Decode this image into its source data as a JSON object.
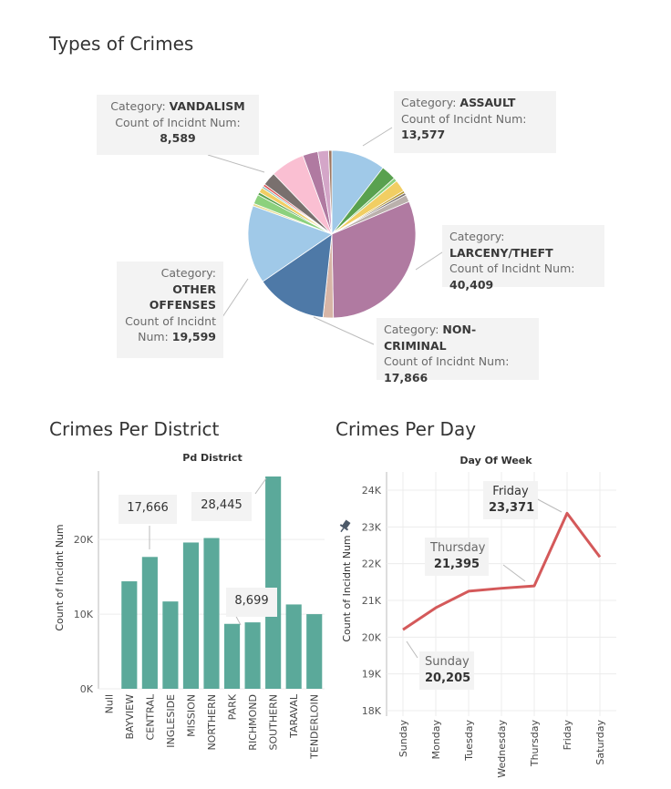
{
  "colors": {
    "bar": "#5ba99a",
    "line": "#d4595a",
    "grid": "#ececec",
    "axis": "#bbbbbb"
  },
  "icons": {
    "pin": "pin-icon"
  },
  "chart_data": [
    {
      "type": "pie",
      "title": "Types of Crimes",
      "slices": [
        {
          "label": "ASSAULT",
          "value": 13577,
          "color": "#a0c9e8"
        },
        {
          "label": "",
          "value": 3800,
          "color": "#59a14f"
        },
        {
          "label": "",
          "value": 900,
          "color": "#8cd17d"
        },
        {
          "label": "",
          "value": 3000,
          "color": "#f1ce63"
        },
        {
          "label": "",
          "value": 600,
          "color": "#b6992d"
        },
        {
          "label": "",
          "value": 600,
          "color": "#79706e"
        },
        {
          "label": "",
          "value": 1800,
          "color": "#bab0ac"
        },
        {
          "label": "LARCENY/THEFT",
          "value": 40409,
          "color": "#b07aa1"
        },
        {
          "label": "",
          "value": 2600,
          "color": "#d7b5a6"
        },
        {
          "label": "NON-CRIMINAL",
          "value": 17866,
          "color": "#4e79a7"
        },
        {
          "label": "OTHER OFFENSES",
          "value": 19599,
          "color": "#a0c9e8"
        },
        {
          "label": "",
          "value": 600,
          "color": "#e5d98b"
        },
        {
          "label": "",
          "value": 2400,
          "color": "#8cd17d"
        },
        {
          "label": "",
          "value": 700,
          "color": "#59a14f"
        },
        {
          "label": "",
          "value": 1300,
          "color": "#f1ce63"
        },
        {
          "label": "",
          "value": 500,
          "color": "#86bcb6"
        },
        {
          "label": "",
          "value": 600,
          "color": "#e15759"
        },
        {
          "label": "",
          "value": 3400,
          "color": "#79706e"
        },
        {
          "label": "VANDALISM",
          "value": 8589,
          "color": "#fabfd2"
        },
        {
          "label": "",
          "value": 3800,
          "color": "#b07aa1"
        },
        {
          "label": "",
          "value": 2700,
          "color": "#d4a6c8"
        },
        {
          "label": "",
          "value": 800,
          "color": "#9d7660"
        }
      ],
      "callouts": {
        "category_label": "Category:",
        "count_label": "Count of Incidnt Num:",
        "count_label_line1": "Count of Incidnt",
        "count_label_line2": "Num:",
        "other_line1": "OTHER",
        "other_line2": "OFFENSES",
        "vandalism": {
          "category": "VANDALISM",
          "value": "8,589"
        },
        "assault": {
          "category": "ASSAULT",
          "value": "13,577"
        },
        "larceny": {
          "category": "LARCENY/THEFT",
          "value": "40,409"
        },
        "other": {
          "value": "19,599"
        },
        "noncriminal": {
          "category": "NON-CRIMINAL",
          "value": "17,866"
        }
      }
    },
    {
      "type": "bar",
      "title": "Crimes Per District",
      "header": "Pd District",
      "ylabel": "Count of Incidnt Num",
      "ylim": [
        0,
        28445
      ],
      "yticks": [
        {
          "v": 0,
          "label": "0K"
        },
        {
          "v": 10000,
          "label": "10K"
        },
        {
          "v": 20000,
          "label": "20K"
        }
      ],
      "categories": [
        "Null",
        "BAYVIEW",
        "CENTRAL",
        "INGLESIDE",
        "MISSION",
        "NORTHERN",
        "PARK",
        "RICHMOND",
        "SOUTHERN",
        "TARAVAL",
        "TENDERLOIN"
      ],
      "values": [
        0,
        14400,
        17666,
        11700,
        19600,
        20200,
        8699,
        8900,
        28445,
        11300,
        10000
      ],
      "labels": {
        "central": "17,666",
        "southern": "28,445",
        "park": "8,699"
      }
    },
    {
      "type": "line",
      "title": "Crimes Per Day",
      "header": "Day Of Week",
      "ylabel": "Count of Incidnt Num",
      "ylim": [
        18000,
        24000
      ],
      "yticks": [
        {
          "v": 18000,
          "label": "18K"
        },
        {
          "v": 19000,
          "label": "19K"
        },
        {
          "v": 20000,
          "label": "20K"
        },
        {
          "v": 21000,
          "label": "21K"
        },
        {
          "v": 22000,
          "label": "22K"
        },
        {
          "v": 23000,
          "label": "23K"
        },
        {
          "v": 24000,
          "label": "24K"
        }
      ],
      "categories": [
        "Sunday",
        "Monday",
        "Tuesday",
        "Wednesday",
        "Thursday",
        "Friday",
        "Saturday"
      ],
      "values": [
        20205,
        20800,
        21250,
        21330,
        21395,
        23371,
        22180
      ],
      "labels": {
        "friday": {
          "day": "Friday",
          "value": "23,371"
        },
        "thursday": {
          "day": "Thursday",
          "value": "21,395"
        },
        "sunday": {
          "day": "Sunday",
          "value": "20,205"
        }
      }
    }
  ]
}
